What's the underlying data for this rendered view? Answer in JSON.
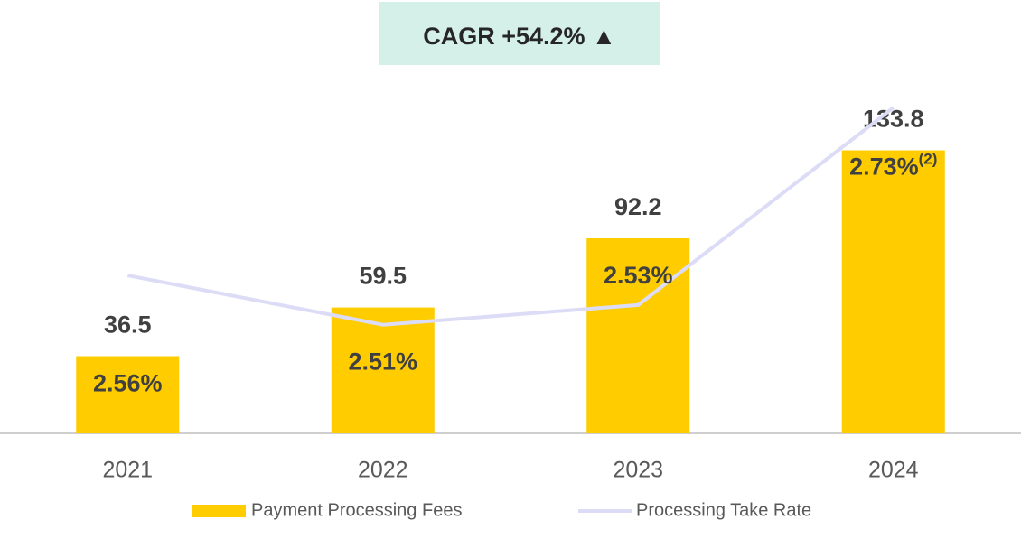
{
  "chart_data": {
    "type": "bar",
    "title": "CAGR +54.2% ▲",
    "categories": [
      "2021",
      "2022",
      "2023",
      "2024"
    ],
    "series": [
      {
        "name": "Payment Processing Fees",
        "color": "#ffcc00",
        "values": [
          36.5,
          59.5,
          92.2,
          133.8
        ]
      },
      {
        "name": "Processing Take Rate",
        "type": "line",
        "axis": "y2",
        "color": "#dcdcf6",
        "values": [
          2.56,
          2.51,
          2.53,
          2.73
        ],
        "value_labels": [
          "2.56%",
          "2.51%",
          "2.53%",
          "2.73%"
        ],
        "value_label_notes": [
          null,
          null,
          null,
          "(2)"
        ]
      }
    ],
    "ylim": [
      0,
      175
    ],
    "y2lim": [
      2.4,
      2.775
    ],
    "grid": false,
    "legend": "bottom"
  }
}
